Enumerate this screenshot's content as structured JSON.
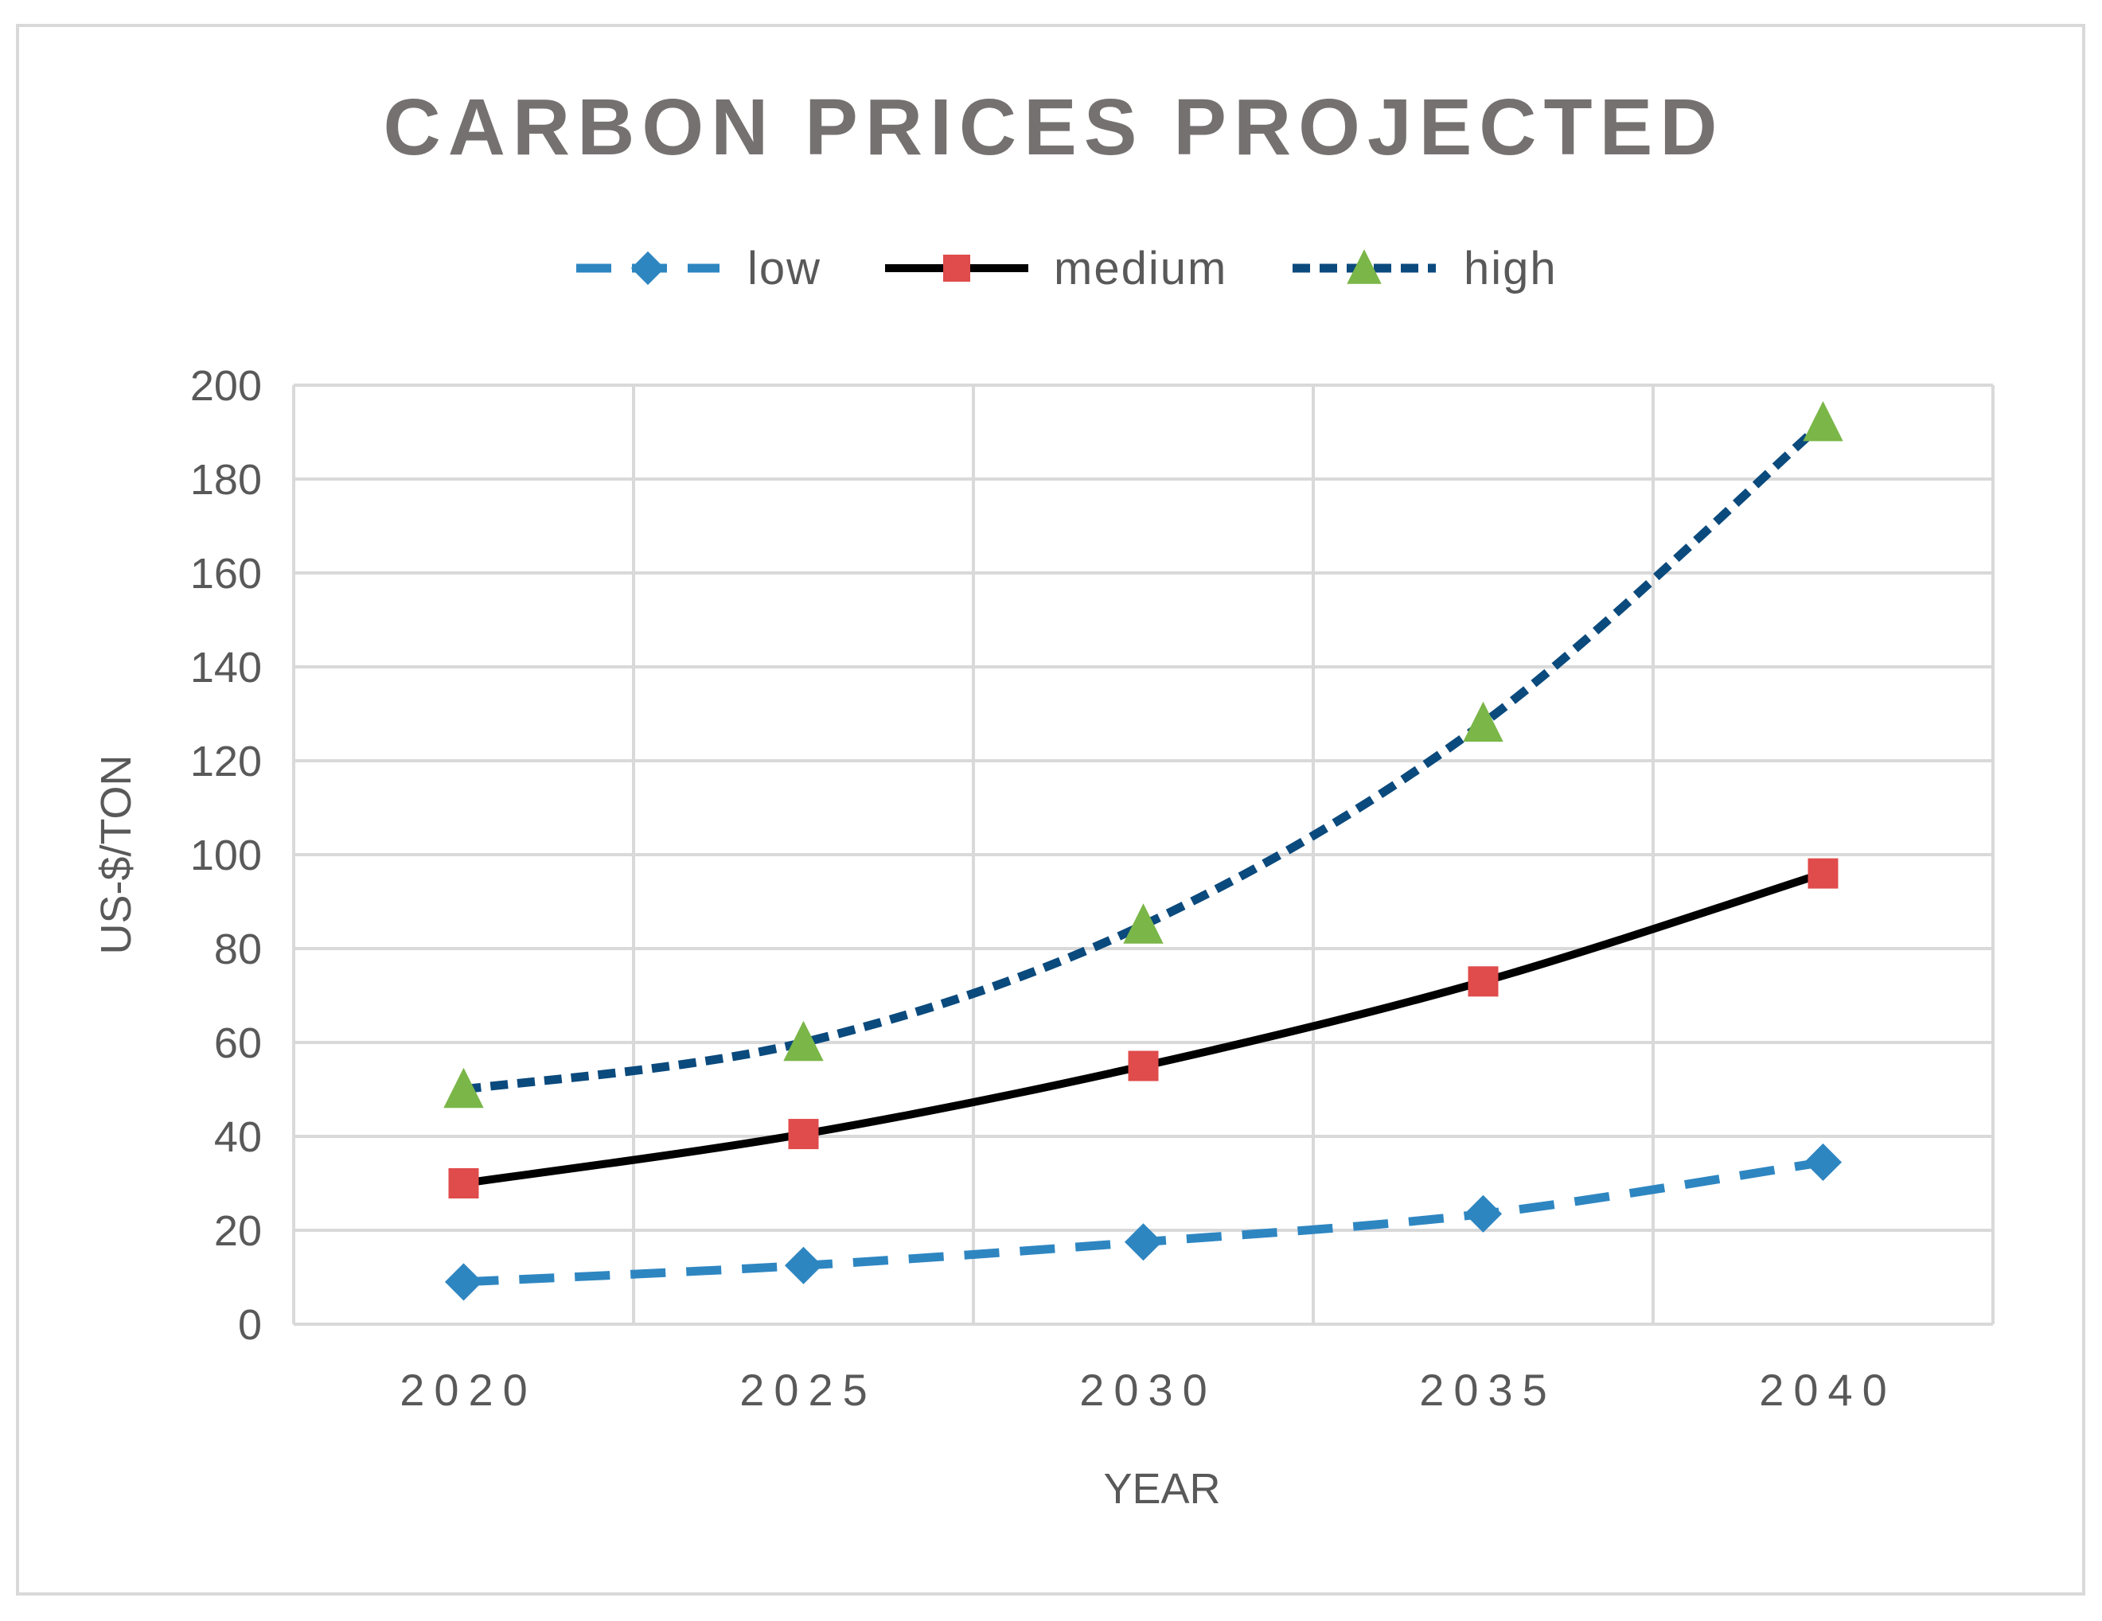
{
  "chart_data": {
    "type": "line",
    "title": "CARBON PRICES PROJECTED",
    "xlabel": "YEAR",
    "ylabel": "US-$/TON",
    "categories": [
      "2020",
      "2025",
      "2030",
      "2035",
      "2040"
    ],
    "ylim": [
      0,
      200
    ],
    "yticks": [
      "0",
      "20",
      "40",
      "60",
      "80",
      "100",
      "120",
      "140",
      "160",
      "180",
      "200"
    ],
    "grid": true,
    "legend_position": "top",
    "series": [
      {
        "name": "low",
        "values": [
          9,
          12.5,
          17.5,
          23.5,
          34.5
        ],
        "color": "#2e86c1",
        "marker": "diamond",
        "marker_color": "#2e86c1",
        "dash": "long"
      },
      {
        "name": "medium",
        "values": [
          30,
          40.5,
          55,
          73,
          96
        ],
        "color": "#000000",
        "marker": "square",
        "marker_color": "#e04b4b",
        "dash": "solid"
      },
      {
        "name": "high",
        "values": [
          50,
          60,
          85,
          128,
          192
        ],
        "color": "#0b4a7d",
        "marker": "triangle",
        "marker_color": "#7ab648",
        "dash": "short"
      }
    ]
  }
}
